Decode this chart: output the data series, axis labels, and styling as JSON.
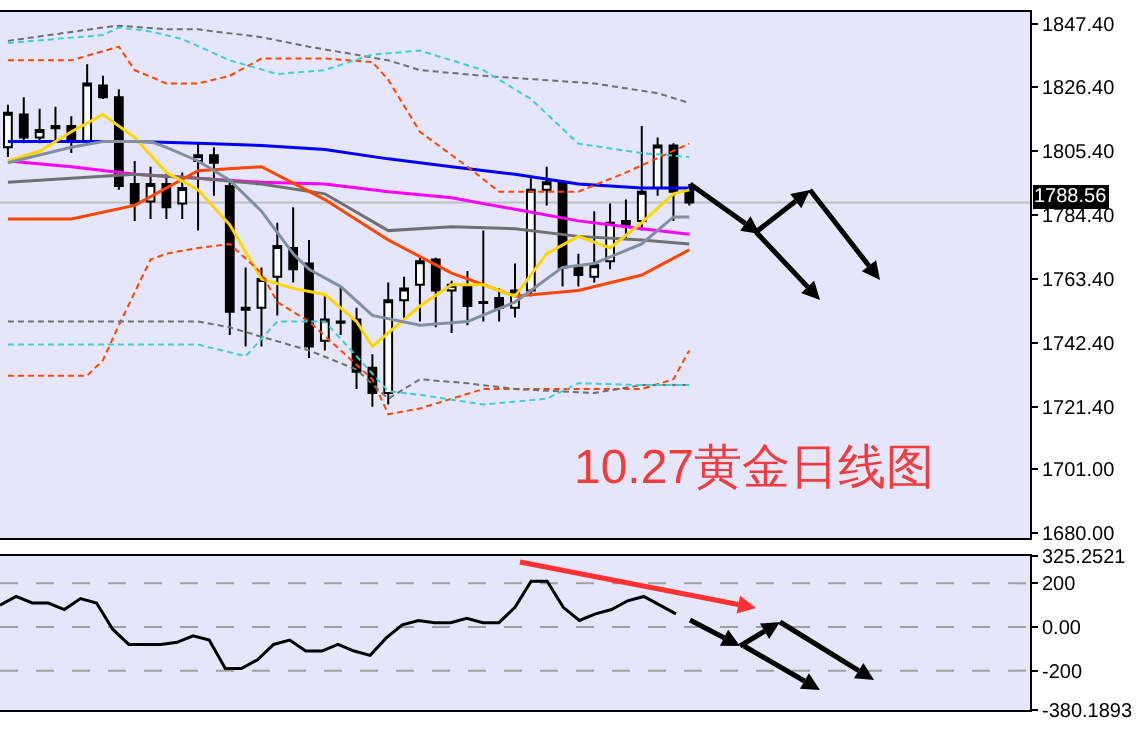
{
  "chart_data": [
    {
      "type": "candlestick",
      "title": "10.27黄金日线图",
      "categories": [
        null,
        null,
        null,
        null,
        null,
        null,
        null,
        null,
        null,
        null,
        null,
        null,
        null,
        null,
        null,
        null,
        null,
        null,
        null,
        null,
        null,
        null,
        null,
        null,
        null,
        null,
        null,
        null,
        null,
        null,
        null,
        null,
        null,
        null,
        null,
        null,
        null,
        null,
        null,
        null,
        null,
        null,
        null,
        null,
        null,
        null,
        null,
        null,
        null,
        null,
        null,
        null,
        null,
        null,
        null,
        null,
        null,
        null,
        null,
        null,
        null,
        null,
        null,
        null,
        null
      ],
      "ohlc": [
        [
          1806.7,
          1820.7,
          1803.5,
          1818.1
        ],
        [
          1817.5,
          1823.2,
          1808.0,
          1809.9
        ],
        [
          1809.9,
          1819.4,
          1808.0,
          1812.4
        ],
        [
          1813.7,
          1820.0,
          1808.6,
          1813.0
        ],
        [
          1813.7,
          1816.9,
          1804.8,
          1808.6
        ],
        [
          1808.6,
          1834.0,
          1808.0,
          1827.7
        ],
        [
          1827.0,
          1830.2,
          1822.6,
          1823.2
        ],
        [
          1823.2,
          1825.8,
          1792.7,
          1794.0
        ],
        [
          1794.6,
          1802.2,
          1782.5,
          1788.2
        ],
        [
          1788.9,
          1800.3,
          1783.1,
          1794.6
        ],
        [
          1794.6,
          1798.4,
          1783.1,
          1787.0
        ],
        [
          1788.2,
          1798.4,
          1783.1,
          1793.3
        ],
        [
          1802.2,
          1808.0,
          1779.3,
          1804.1
        ],
        [
          1804.1,
          1806.7,
          1790.8,
          1801.6
        ],
        [
          1794.0,
          1795.2,
          1745.0,
          1752.6
        ],
        [
          1753.9,
          1767.2,
          1741.2,
          1753.3
        ],
        [
          1753.9,
          1767.2,
          1741.2,
          1763.4
        ],
        [
          1764.1,
          1781.9,
          1751.4,
          1774.2
        ],
        [
          1773.6,
          1787.0,
          1762.2,
          1766.6
        ],
        [
          1768.5,
          1776.2,
          1737.4,
          1741.2
        ],
        [
          1743.1,
          1757.7,
          1739.9,
          1750.1
        ],
        [
          1749.4,
          1760.9,
          1745.0,
          1749.0
        ],
        [
          1750.1,
          1753.9,
          1727.2,
          1732.9
        ],
        [
          1734.2,
          1738.6,
          1721.4,
          1725.9
        ],
        [
          1725.9,
          1762.2,
          1722.1,
          1756.4
        ],
        [
          1756.4,
          1764.1,
          1749.4,
          1760.3
        ],
        [
          1761.5,
          1770.4,
          1749.4,
          1769.2
        ],
        [
          1769.8,
          1770.4,
          1747.5,
          1759.6
        ],
        [
          1759.6,
          1762.8,
          1745.6,
          1761.5
        ],
        [
          1760.9,
          1766.0,
          1748.2,
          1754.5
        ],
        [
          1755.8,
          1779.3,
          1749.4,
          1755.5
        ],
        [
          1757.1,
          1760.3,
          1749.4,
          1753.9
        ],
        [
          1753.9,
          1768.5,
          1750.7,
          1759.6
        ],
        [
          1759.6,
          1796.5,
          1757.7,
          1792.7
        ],
        [
          1792.7,
          1800.3,
          1787.6,
          1795.2
        ],
        [
          1795.2,
          1795.9,
          1760.9,
          1767.2
        ],
        [
          1767.2,
          1771.7,
          1760.9,
          1764.7
        ],
        [
          1764.1,
          1785.7,
          1762.2,
          1767.9
        ],
        [
          1769.2,
          1788.2,
          1766.6,
          1781.9
        ],
        [
          1781.2,
          1789.5,
          1776.8,
          1782.5
        ],
        [
          1782.5,
          1813.7,
          1779.3,
          1792.1
        ],
        [
          1793.3,
          1809.9,
          1790.8,
          1807.3
        ],
        [
          1807.3,
          1808.0,
          1782.5,
          1792.1
        ],
        [
          1793.3,
          1794.6,
          1787.6,
          1788.56
        ],
        null,
        null,
        null,
        null,
        null,
        null,
        null,
        null,
        null,
        null,
        null,
        null,
        null,
        null,
        null,
        null,
        null,
        null,
        null,
        null,
        null
      ],
      "series": [
        {
          "type": "line",
          "color": "#0000ff",
          "values": [
            1808.6,
            null,
            null,
            null,
            1808.6,
            null,
            null,
            null,
            1808.6,
            null,
            null,
            null,
            1808.0,
            null,
            null,
            null,
            1807.3,
            null,
            null,
            null,
            1806.0,
            null,
            null,
            null,
            1802.9,
            null,
            null,
            null,
            1800.3,
            null,
            null,
            null,
            1797.8,
            null,
            null,
            null,
            1794.6,
            null,
            null,
            null,
            1793.3,
            null,
            null,
            1793.3,
            null,
            null,
            null,
            null,
            null,
            null,
            null,
            null,
            null,
            null,
            null,
            null,
            null,
            null,
            null,
            null,
            null,
            null,
            null,
            null,
            null
          ]
        },
        {
          "type": "line",
          "color": "#ff00ff",
          "values": [
            1802.2,
            null,
            null,
            null,
            1800.3,
            null,
            null,
            null,
            1797.8,
            null,
            null,
            null,
            1796.5,
            null,
            null,
            null,
            1795.2,
            null,
            null,
            null,
            1794.6,
            null,
            null,
            null,
            1792.1,
            null,
            null,
            null,
            1790.1,
            null,
            null,
            null,
            1786.3,
            null,
            null,
            null,
            1782.5,
            null,
            null,
            null,
            1779.9,
            null,
            null,
            1778.1,
            null,
            null,
            null,
            null,
            null,
            null,
            null,
            null,
            null,
            null,
            null,
            null,
            null,
            null,
            null,
            null,
            null,
            null,
            null,
            null,
            null
          ]
        },
        {
          "type": "line",
          "color": "#707070",
          "values": [
            1795.2,
            null,
            null,
            null,
            1796.5,
            null,
            null,
            null,
            1797.8,
            null,
            null,
            null,
            1796.5,
            null,
            null,
            null,
            1794.6,
            null,
            null,
            null,
            1791.4,
            null,
            null,
            null,
            1779.3,
            null,
            null,
            null,
            1780.6,
            null,
            null,
            null,
            1779.9,
            null,
            null,
            null,
            1777.4,
            null,
            null,
            null,
            1776.2,
            null,
            null,
            1774.9,
            null,
            null,
            null,
            null,
            null,
            null,
            null,
            null,
            null,
            null,
            null,
            null,
            null,
            null,
            null,
            null,
            null,
            null,
            null,
            null,
            null
          ]
        },
        {
          "type": "line",
          "color": "#ff4500",
          "values": [
            1783.1,
            null,
            null,
            null,
            1783.1,
            null,
            null,
            null,
            1787.6,
            null,
            null,
            null,
            1799.0,
            null,
            null,
            null,
            1800.3,
            null,
            null,
            null,
            1789.5,
            null,
            null,
            null,
            1776.2,
            null,
            null,
            null,
            1765.3,
            null,
            null,
            null,
            1757.7,
            null,
            null,
            null,
            1759.6,
            null,
            null,
            null,
            1764.7,
            null,
            null,
            1773.0,
            null,
            null,
            null,
            null,
            null,
            null,
            null,
            null,
            null,
            null,
            null,
            null,
            null,
            null,
            null,
            null,
            null,
            null,
            null,
            null,
            null
          ]
        },
        {
          "type": "line",
          "color": "#ffd700",
          "values": [
            1802.2,
            null,
            1805.4,
            null,
            1811.8,
            null,
            1817.5,
            null,
            1809.9,
            null,
            1798.4,
            null,
            1792.7,
            null,
            1781.2,
            null,
            1763.4,
            null,
            1760.3,
            null,
            1758.3,
            null,
            1749.4,
            1741.2,
            null,
            null,
            1754.5,
            null,
            1761.5,
            null,
            1761.5,
            null,
            1757.7,
            null,
            1771.7,
            null,
            1777.4,
            null,
            1773.6,
            null,
            1781.9,
            null,
            1791.4,
            1792.7,
            null,
            null,
            null,
            null,
            null,
            null,
            null,
            null,
            null,
            null,
            null,
            null,
            null,
            null,
            null,
            null,
            null,
            null,
            null,
            null,
            null
          ]
        },
        {
          "type": "line",
          "color": "#8090a0",
          "values": [
            1801.6,
            null,
            null,
            null,
            1806.7,
            null,
            1808.6,
            null,
            null,
            1808.6,
            1806.7,
            null,
            1802.2,
            null,
            1795.9,
            null,
            1785.7,
            null,
            1771.7,
            1766.6,
            null,
            1760.9,
            null,
            1751.4,
            null,
            null,
            1748.2,
            null,
            null,
            1749.4,
            null,
            null,
            1755.8,
            null,
            null,
            1767.2,
            null,
            1768.5,
            null,
            null,
            1774.9,
            null,
            1783.8,
            1783.8,
            null,
            null,
            null,
            null,
            null,
            null,
            null,
            null,
            null,
            null,
            null,
            null,
            null,
            null,
            null,
            null,
            null,
            null,
            null,
            null,
            null
          ]
        },
        {
          "type": "line",
          "line_style": "dashed",
          "color": "#ff4500",
          "values": [
            1835.3,
            null,
            null,
            null,
            1835.3,
            null,
            null,
            1839.8,
            1832.1,
            null,
            1827.7,
            null,
            1827.7,
            null,
            1830.2,
            null,
            1835.9,
            null,
            null,
            null,
            1835.9,
            null,
            null,
            1834.7,
            1828.9,
            null,
            1811.8,
            null,
            null,
            1800.3,
            null,
            1792.1,
            null,
            null,
            null,
            null,
            1792.1,
            null,
            null,
            1798.4,
            null,
            null,
            null,
            1807.9,
            null,
            null,
            null,
            null,
            null,
            null,
            null,
            null,
            null,
            null,
            null,
            null,
            null,
            null,
            null,
            null,
            null,
            null,
            null,
            null,
            null
          ]
        },
        {
          "type": "line",
          "line_style": "dashed",
          "color": "#ff4500",
          "values": [
            1731.6,
            null,
            null,
            null,
            null,
            1731.6,
            1736.7,
            1748.2,
            null,
            1769.8,
            1771.7,
            null,
            1773.6,
            null,
            1774.9,
            null,
            1765.3,
            1755.8,
            null,
            1749.4,
            null,
            1739.9,
            null,
            1730.4,
            1718.9,
            null,
            1720.8,
            null,
            null,
            null,
            1727.2,
            null,
            null,
            null,
            null,
            1727.2,
            null,
            null,
            null,
            null,
            1727.2,
            null,
            1730.4,
            1739.9,
            null,
            null,
            null,
            null,
            null,
            null,
            null,
            null,
            null,
            null,
            null,
            null,
            null,
            null,
            null,
            null,
            null,
            null,
            null,
            null,
            null
          ]
        },
        {
          "type": "line",
          "line_style": "dashed",
          "color": "#707070",
          "values": [
            1841.7,
            null,
            null,
            null,
            null,
            null,
            1846.1,
            1846.7,
            null,
            null,
            1845.5,
            null,
            1845.5,
            null,
            null,
            null,
            1842.9,
            null,
            null,
            1839.8,
            null,
            null,
            null,
            null,
            1835.3,
            null,
            1832.1,
            null,
            null,
            null,
            1830.2,
            null,
            null,
            null,
            null,
            null,
            null,
            1827.7,
            null,
            null,
            null,
            1824.5,
            null,
            1821.3,
            null,
            null,
            null,
            null,
            null,
            null,
            null,
            null,
            null,
            null,
            null,
            null,
            null,
            null,
            null,
            null,
            null,
            null,
            null,
            null,
            null
          ]
        },
        {
          "type": "line",
          "line_style": "dashed",
          "color": "#707070",
          "values": [
            1749.4,
            null,
            null,
            null,
            null,
            null,
            null,
            null,
            null,
            1749.4,
            null,
            null,
            1749.4,
            null,
            1747.5,
            null,
            1744.4,
            null,
            null,
            1739.9,
            null,
            null,
            1733.6,
            null,
            1724.0,
            null,
            1730.4,
            null,
            null,
            1729.1,
            null,
            null,
            1727.2,
            null,
            null,
            null,
            null,
            1725.9,
            null,
            null,
            1728.5,
            null,
            null,
            1728.5,
            null,
            null,
            null,
            null,
            null,
            null,
            null,
            null,
            null,
            null,
            null,
            null,
            null,
            null,
            null,
            null,
            null,
            null,
            null,
            null,
            null
          ]
        },
        {
          "type": "line",
          "line_style": "dashed",
          "color": "#40d0d0",
          "values": [
            1841.0,
            null,
            null,
            null,
            null,
            null,
            1843.6,
            1846.1,
            null,
            1844.8,
            null,
            1842.3,
            null,
            null,
            1835.3,
            null,
            null,
            1830.8,
            null,
            null,
            1832.1,
            null,
            null,
            1837.2,
            null,
            null,
            1838.5,
            null,
            null,
            null,
            1832.1,
            null,
            null,
            1822.6,
            null,
            null,
            1807.9,
            null,
            null,
            null,
            1804.8,
            null,
            null,
            1803.5,
            null,
            null,
            null,
            null,
            null,
            null,
            null,
            null,
            null,
            null,
            null,
            null,
            null,
            null,
            null,
            null,
            null,
            null,
            null,
            null,
            null
          ]
        },
        {
          "type": "line",
          "line_style": "dashed",
          "color": "#40d0d0",
          "values": [
            1741.8,
            null,
            null,
            null,
            null,
            null,
            null,
            1741.8,
            null,
            null,
            null,
            null,
            1741.8,
            null,
            null,
            1738.0,
            null,
            1749.4,
            null,
            null,
            1749.4,
            null,
            1738.0,
            null,
            1726.5,
            null,
            1725.3,
            null,
            null,
            null,
            1722.1,
            null,
            null,
            null,
            1724.0,
            null,
            1729.1,
            null,
            null,
            null,
            1728.5,
            null,
            null,
            1728.5,
            null,
            null,
            null,
            null,
            null,
            null,
            null,
            null,
            null,
            null,
            null,
            null,
            null,
            null,
            null,
            null,
            null,
            null,
            null,
            null,
            null
          ]
        }
      ],
      "ylim": [
        1678.2,
        1851.2
      ],
      "yticks": [
        {
          "value": 1847.4,
          "label": "1847.40"
        },
        {
          "value": 1826.4,
          "label": "1826.40"
        },
        {
          "value": 1805.4,
          "label": "1805.40"
        },
        {
          "value": 1784.4,
          "label": "1784.40"
        },
        {
          "value": 1763.4,
          "label": "1763.40"
        },
        {
          "value": 1742.4,
          "label": "1742.40"
        },
        {
          "value": 1721.4,
          "label": "1721.40"
        },
        {
          "value": 1701,
          "label": "1701.00"
        },
        {
          "value": 1680,
          "label": "1680.00"
        }
      ],
      "ref_lines": [
        {
          "axis": "y",
          "value": 1788.56,
          "label": "1788.56",
          "color": "#c0c0c0"
        }
      ]
    },
    {
      "type": "line",
      "categories": [
        null,
        null,
        null,
        null,
        null,
        null,
        null,
        null,
        null,
        null,
        null,
        null,
        null,
        null,
        null,
        null,
        null,
        null,
        null,
        null,
        null,
        null,
        null,
        null,
        null,
        null,
        null,
        null,
        null,
        null,
        null,
        null,
        null,
        null,
        null,
        null,
        null,
        null,
        null,
        null,
        null,
        null,
        null,
        null,
        null,
        null,
        null,
        null,
        null,
        null,
        null,
        null,
        null,
        null,
        null,
        null,
        null,
        null,
        null,
        null,
        null,
        null,
        null,
        null,
        null
      ],
      "series": [
        {
          "color": "#000000",
          "values": [
            100,
            140,
            110,
            110,
            80,
            130,
            110,
            -10,
            -80,
            -80,
            -80,
            -70,
            -40,
            -60,
            -190,
            -190,
            -150,
            -80,
            -60,
            -110,
            -110,
            -80,
            -110,
            -130,
            -50,
            10,
            30,
            20,
            20,
            40,
            20,
            20,
            90,
            210,
            210,
            90,
            30,
            60,
            80,
            120,
            140,
            100,
            60,
            null,
            null,
            null,
            null,
            null,
            null,
            null,
            null,
            null,
            null,
            null,
            null,
            null,
            null,
            null,
            null,
            null,
            null,
            null,
            null,
            null,
            null
          ]
        }
      ],
      "ylim": [
        -380.1893,
        325.2521
      ],
      "yticks": [
        325.2521,
        200,
        {
          "value": 0,
          "label": "0.00"
        },
        -200,
        -380.1893
      ],
      "grid": "y"
    }
  ]
}
